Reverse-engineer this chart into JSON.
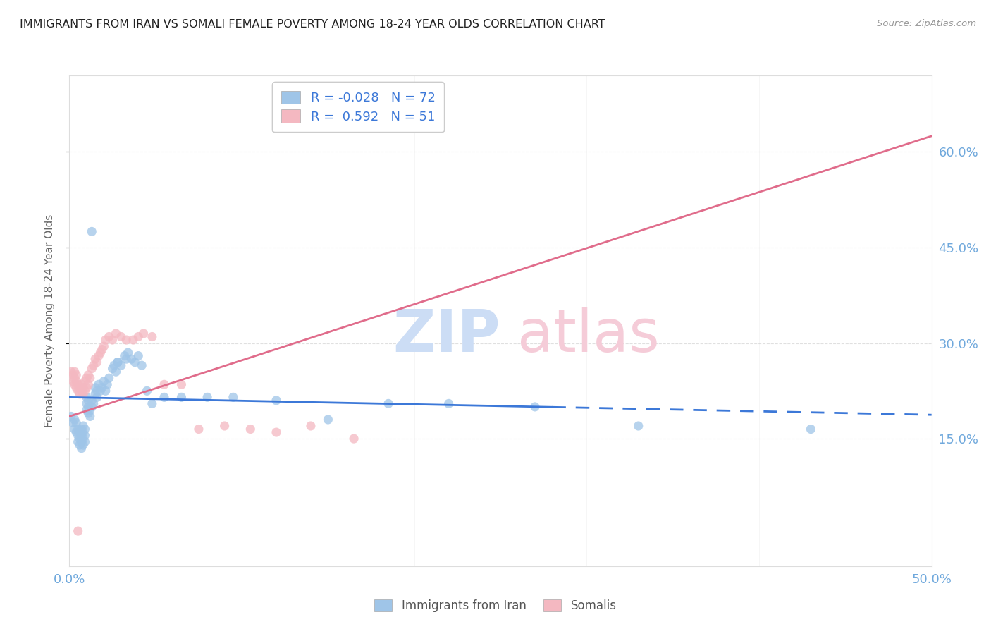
{
  "title": "IMMIGRANTS FROM IRAN VS SOMALI FEMALE POVERTY AMONG 18-24 YEAR OLDS CORRELATION CHART",
  "source": "Source: ZipAtlas.com",
  "ylabel": "Female Poverty Among 18-24 Year Olds",
  "xlim": [
    0.0,
    0.5
  ],
  "ylim": [
    -0.05,
    0.72
  ],
  "yticks": [
    0.15,
    0.3,
    0.45,
    0.6
  ],
  "ytick_labels": [
    "15.0%",
    "30.0%",
    "45.0%",
    "60.0%"
  ],
  "xticks": [
    0.0,
    0.1,
    0.2,
    0.3,
    0.4,
    0.5
  ],
  "xtick_labels": [
    "0.0%",
    "",
    "",
    "",
    "",
    "50.0%"
  ],
  "iran_color": "#9fc5e8",
  "somali_color": "#f4b8c1",
  "iran_line_color": "#3c78d8",
  "somali_line_color": "#e06c8b",
  "legend_R_iran": "-0.028",
  "legend_N_iran": "72",
  "legend_R_somali": "0.592",
  "legend_N_somali": "51",
  "background_color": "#ffffff",
  "grid_color": "#cccccc",
  "tick_color": "#6fa8dc",
  "title_color": "#222222",
  "watermark_zip_color": "#ccddf5",
  "watermark_atlas_color": "#f5ccd8",
  "iran_line_solid_end": 0.28,
  "iran_line_dash_start": 0.28,
  "somali_line_intercept": 0.185,
  "somali_line_slope": 0.88,
  "iran_line_intercept": 0.215,
  "iran_line_slope": -0.055,
  "iran_x": [
    0.001,
    0.002,
    0.003,
    0.003,
    0.004,
    0.004,
    0.005,
    0.005,
    0.005,
    0.006,
    0.006,
    0.006,
    0.007,
    0.007,
    0.007,
    0.007,
    0.008,
    0.008,
    0.008,
    0.008,
    0.009,
    0.009,
    0.009,
    0.01,
    0.01,
    0.01,
    0.011,
    0.011,
    0.011,
    0.012,
    0.012,
    0.013,
    0.013,
    0.014,
    0.015,
    0.015,
    0.016,
    0.016,
    0.017,
    0.018,
    0.019,
    0.02,
    0.021,
    0.022,
    0.023,
    0.025,
    0.026,
    0.027,
    0.028,
    0.03,
    0.032,
    0.033,
    0.034,
    0.036,
    0.038,
    0.04,
    0.042,
    0.045,
    0.048,
    0.055,
    0.065,
    0.08,
    0.095,
    0.12,
    0.15,
    0.185,
    0.22,
    0.27,
    0.33,
    0.43,
    0.013,
    0.028
  ],
  "iran_y": [
    0.185,
    0.175,
    0.165,
    0.18,
    0.16,
    0.175,
    0.145,
    0.155,
    0.165,
    0.14,
    0.15,
    0.16,
    0.135,
    0.145,
    0.155,
    0.165,
    0.14,
    0.15,
    0.16,
    0.17,
    0.145,
    0.155,
    0.165,
    0.195,
    0.205,
    0.215,
    0.19,
    0.2,
    0.21,
    0.185,
    0.195,
    0.2,
    0.21,
    0.205,
    0.22,
    0.23,
    0.215,
    0.225,
    0.235,
    0.225,
    0.23,
    0.24,
    0.225,
    0.235,
    0.245,
    0.26,
    0.265,
    0.255,
    0.27,
    0.265,
    0.28,
    0.275,
    0.285,
    0.275,
    0.27,
    0.28,
    0.265,
    0.225,
    0.205,
    0.215,
    0.215,
    0.215,
    0.215,
    0.21,
    0.18,
    0.205,
    0.205,
    0.2,
    0.17,
    0.165,
    0.475,
    0.27
  ],
  "somali_x": [
    0.001,
    0.002,
    0.002,
    0.003,
    0.003,
    0.003,
    0.004,
    0.004,
    0.004,
    0.005,
    0.005,
    0.006,
    0.006,
    0.007,
    0.007,
    0.008,
    0.008,
    0.009,
    0.009,
    0.01,
    0.01,
    0.011,
    0.011,
    0.012,
    0.013,
    0.014,
    0.015,
    0.016,
    0.017,
    0.018,
    0.019,
    0.02,
    0.021,
    0.023,
    0.025,
    0.027,
    0.03,
    0.033,
    0.037,
    0.04,
    0.043,
    0.048,
    0.055,
    0.065,
    0.075,
    0.09,
    0.105,
    0.12,
    0.14,
    0.165,
    0.005
  ],
  "somali_y": [
    0.255,
    0.24,
    0.25,
    0.235,
    0.245,
    0.255,
    0.23,
    0.24,
    0.25,
    0.225,
    0.235,
    0.22,
    0.23,
    0.225,
    0.235,
    0.22,
    0.23,
    0.225,
    0.24,
    0.23,
    0.245,
    0.235,
    0.25,
    0.245,
    0.26,
    0.265,
    0.275,
    0.27,
    0.28,
    0.285,
    0.29,
    0.295,
    0.305,
    0.31,
    0.305,
    0.315,
    0.31,
    0.305,
    0.305,
    0.31,
    0.315,
    0.31,
    0.235,
    0.235,
    0.165,
    0.17,
    0.165,
    0.16,
    0.17,
    0.15,
    0.005
  ]
}
